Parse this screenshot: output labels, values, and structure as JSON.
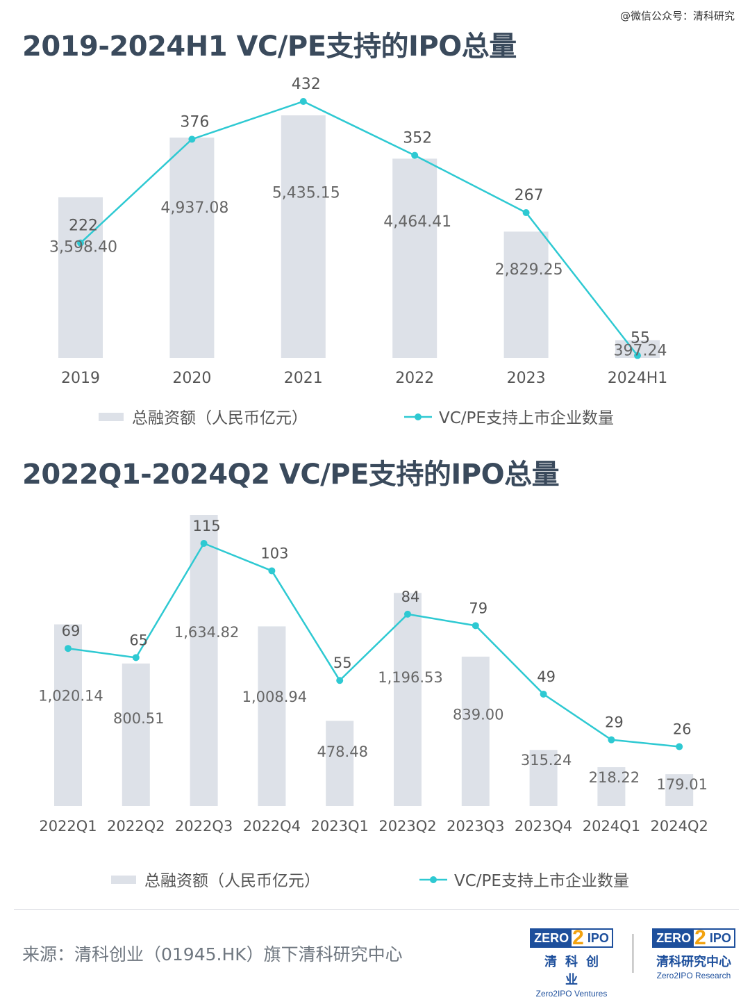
{
  "watermark": "@微信公众号：清科研究",
  "chart_data": [
    {
      "type": "bar",
      "title": "2019-2024H1 VC/PE支持的IPO总量",
      "categories": [
        "2019",
        "2020",
        "2021",
        "2022",
        "2023",
        "2024H1"
      ],
      "series": [
        {
          "name": "总融资额（人民币亿元）",
          "kind": "bar",
          "color": "#dde1e8",
          "values": [
            3598.4,
            4937.08,
            5435.15,
            4464.41,
            2829.25,
            397.24
          ],
          "labels": [
            "3,598.40",
            "4,937.08",
            "5,435.15",
            "4,464.41",
            "2,829.25",
            "397.24"
          ]
        },
        {
          "name": "VC/PE支持上市企业数量",
          "kind": "line",
          "color": "#2ec9d2",
          "values": [
            222,
            376,
            432,
            352,
            267,
            55
          ],
          "labels": [
            "222",
            "376",
            "432",
            "352",
            "267",
            "55"
          ]
        }
      ],
      "legend": "bottom"
    },
    {
      "type": "bar",
      "title": "2022Q1-2024Q2 VC/PE支持的IPO总量",
      "categories": [
        "2022Q1",
        "2022Q2",
        "2022Q3",
        "2022Q4",
        "2023Q1",
        "2023Q2",
        "2023Q3",
        "2023Q4",
        "2024Q1",
        "2024Q2"
      ],
      "series": [
        {
          "name": "总融资额（人民币亿元）",
          "kind": "bar",
          "color": "#dde1e8",
          "values": [
            1020.14,
            800.51,
            1634.82,
            1008.94,
            478.48,
            1196.53,
            839.0,
            315.24,
            218.22,
            179.01
          ],
          "labels": [
            "1,020.14",
            "800.51",
            "1,634.82",
            "1,008.94",
            "478.48",
            "1,196.53",
            "839.00",
            "315.24",
            "218.22",
            "179.01"
          ]
        },
        {
          "name": "VC/PE支持上市企业数量",
          "kind": "line",
          "color": "#2ec9d2",
          "values": [
            69,
            65,
            115,
            103,
            55,
            84,
            79,
            49,
            29,
            26
          ],
          "labels": [
            "69",
            "65",
            "115",
            "103",
            "55",
            "84",
            "79",
            "49",
            "29",
            "26"
          ]
        }
      ],
      "legend": "bottom"
    }
  ],
  "source": "来源：清科创业（01945.HK）旗下清科研究中心",
  "logos": [
    {
      "left": "ZERO",
      "mid": "2",
      "right": "IPO",
      "cn": "清科创业",
      "en": "Zero2IPO Ventures"
    },
    {
      "left": "ZERO",
      "mid": "2",
      "right": "IPO",
      "cn": "清科研究中心",
      "en": "Zero2IPO Research"
    }
  ]
}
